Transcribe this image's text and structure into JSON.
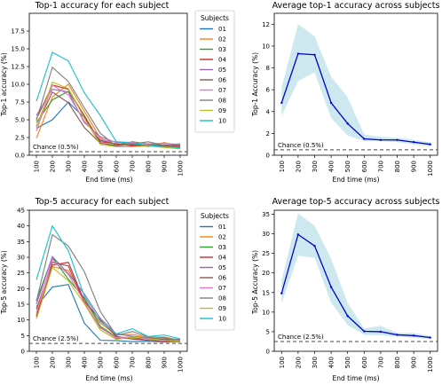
{
  "chart_data": [
    {
      "id": "top1_subjects",
      "type": "line",
      "title": "Top-1 accuracy for each subject",
      "xlabel": "End time (ms)",
      "ylabel": "Top-1 accuracy (%)",
      "x": [
        100,
        200,
        300,
        400,
        500,
        600,
        700,
        800,
        900,
        1000
      ],
      "xticks": [
        "100",
        "200",
        "300",
        "400",
        "500",
        "600",
        "700",
        "800",
        "900",
        "1000"
      ],
      "ylim": [
        0,
        20
      ],
      "yticks": [
        "0.0",
        "2.5",
        "5.0",
        "7.5",
        "10.0",
        "12.5",
        "15.0",
        "17.5"
      ],
      "yticks_values": [
        0,
        2.5,
        5,
        7.5,
        10,
        12.5,
        15,
        17.5
      ],
      "legend_title": "Subjects",
      "legend_position": "outside-right",
      "chance": {
        "label": "Chance (0.5%)",
        "value": 0.5
      },
      "series": [
        {
          "name": "01",
          "color": "#1f77b4",
          "values": [
            3.8,
            5.0,
            7.5,
            5.3,
            2.1,
            1.6,
            1.4,
            1.3,
            1.2,
            1.4
          ]
        },
        {
          "name": "02",
          "color": "#ff7f0e",
          "values": [
            2.4,
            8.2,
            10.0,
            6.2,
            2.4,
            1.5,
            1.7,
            1.2,
            1.8,
            1.2
          ]
        },
        {
          "name": "03",
          "color": "#2ca02c",
          "values": [
            4.6,
            7.8,
            9.0,
            5.6,
            1.7,
            1.4,
            1.9,
            1.6,
            1.3,
            1.0
          ]
        },
        {
          "name": "04",
          "color": "#d62728",
          "values": [
            5.1,
            9.9,
            9.3,
            5.5,
            1.9,
            1.6,
            1.3,
            1.5,
            1.2,
            1.3
          ]
        },
        {
          "name": "05",
          "color": "#9467bd",
          "values": [
            5.6,
            9.3,
            8.9,
            4.6,
            2.6,
            1.8,
            1.6,
            1.4,
            1.5,
            1.4
          ]
        },
        {
          "name": "06",
          "color": "#8c564b",
          "values": [
            4.1,
            8.9,
            7.4,
            3.9,
            1.7,
            1.3,
            1.5,
            1.3,
            1.4,
            1.1
          ]
        },
        {
          "name": "07",
          "color": "#e377c2",
          "values": [
            3.4,
            9.9,
            8.5,
            4.8,
            2.2,
            1.9,
            1.8,
            1.6,
            1.7,
            1.5
          ]
        },
        {
          "name": "08",
          "color": "#7f7f7f",
          "values": [
            4.9,
            12.4,
            10.4,
            6.7,
            3.1,
            1.3,
            1.6,
            1.9,
            1.4,
            1.6
          ]
        },
        {
          "name": "09",
          "color": "#bcbd22",
          "values": [
            3.9,
            10.3,
            9.4,
            5.2,
            1.5,
            1.2,
            1.2,
            1.3,
            1.1,
            0.9
          ]
        },
        {
          "name": "10",
          "color": "#17becf",
          "values": [
            7.6,
            14.5,
            13.3,
            8.8,
            5.6,
            1.9,
            1.7,
            1.4,
            1.2,
            1.1
          ]
        }
      ]
    },
    {
      "id": "top1_average",
      "type": "area",
      "title": "Average top-1 accuracy across subjects",
      "xlabel": "End time (ms)",
      "ylabel": "Top-1 Accuracy (%)",
      "x": [
        100,
        200,
        300,
        400,
        500,
        600,
        700,
        800,
        900,
        1000
      ],
      "xticks": [
        "100",
        "200",
        "300",
        "400",
        "500",
        "600",
        "700",
        "800",
        "900",
        "1000"
      ],
      "ylim": [
        0,
        13
      ],
      "yticks": [
        "0",
        "2",
        "4",
        "6",
        "8",
        "10",
        "12"
      ],
      "yticks_values": [
        0,
        2,
        4,
        6,
        8,
        10,
        12
      ],
      "chance": {
        "label": "Chance (0.5%)",
        "value": 0.5
      },
      "mean": [
        4.8,
        9.3,
        9.2,
        4.8,
        2.9,
        1.5,
        1.4,
        1.4,
        1.2,
        1.0
      ],
      "lower": [
        3.6,
        6.8,
        7.6,
        3.4,
        1.8,
        1.3,
        1.3,
        1.2,
        1.0,
        0.8
      ],
      "upper": [
        6.2,
        12.0,
        10.9,
        7.2,
        5.3,
        1.9,
        1.7,
        1.6,
        1.4,
        1.2
      ],
      "line_color": "#0000cc",
      "band_color": "#add8e6"
    },
    {
      "id": "top5_subjects",
      "type": "line",
      "title": "Top-5 accuracy for each subject",
      "xlabel": "End time (ms)",
      "ylabel": "Top-5 accuracy (%)",
      "x": [
        100,
        200,
        300,
        400,
        500,
        600,
        700,
        800,
        900,
        1000
      ],
      "xticks": [
        "100",
        "200",
        "300",
        "400",
        "500",
        "600",
        "700",
        "800",
        "900",
        "1000"
      ],
      "ylim": [
        0,
        45
      ],
      "yticks": [
        "0",
        "5",
        "10",
        "15",
        "20",
        "25",
        "30",
        "35",
        "40",
        "45"
      ],
      "yticks_values": [
        0,
        5,
        10,
        15,
        20,
        25,
        30,
        35,
        40,
        45
      ],
      "legend_title": "Subjects",
      "legend_position": "outside-right",
      "chance": {
        "label": "Chance (2.5%)",
        "value": 2.5
      },
      "series": [
        {
          "name": "01",
          "color": "#1f77b4",
          "values": [
            14.2,
            20.5,
            21.3,
            9.0,
            3.5,
            3.4,
            3.1,
            3.2,
            3.0,
            3.1
          ]
        },
        {
          "name": "02",
          "color": "#ff7f0e",
          "values": [
            11.5,
            27.0,
            25.8,
            16.3,
            9.0,
            5.2,
            5.4,
            4.4,
            4.6,
            3.5
          ]
        },
        {
          "name": "03",
          "color": "#2ca02c",
          "values": [
            16.2,
            30.0,
            23.0,
            17.0,
            8.0,
            4.6,
            4.4,
            4.2,
            3.8,
            3.3
          ]
        },
        {
          "name": "04",
          "color": "#d62728",
          "values": [
            11.0,
            27.5,
            28.4,
            16.0,
            10.0,
            4.8,
            3.9,
            3.5,
            3.3,
            3.0
          ]
        },
        {
          "name": "05",
          "color": "#9467bd",
          "values": [
            15.0,
            30.2,
            24.8,
            18.3,
            10.5,
            5.6,
            4.8,
            4.2,
            4.0,
            3.8
          ]
        },
        {
          "name": "06",
          "color": "#8c564b",
          "values": [
            13.4,
            28.4,
            27.2,
            15.4,
            7.6,
            4.2,
            4.0,
            3.9,
            3.6,
            3.2
          ]
        },
        {
          "name": "07",
          "color": "#e377c2",
          "values": [
            12.3,
            29.3,
            24.5,
            15.8,
            7.4,
            4.4,
            4.6,
            3.8,
            3.4,
            3.3
          ]
        },
        {
          "name": "08",
          "color": "#7f7f7f",
          "values": [
            16.0,
            37.2,
            33.6,
            25.4,
            12.7,
            5.1,
            6.3,
            4.6,
            4.3,
            3.6
          ]
        },
        {
          "name": "09",
          "color": "#bcbd22",
          "values": [
            10.3,
            26.8,
            22.5,
            15.2,
            6.8,
            3.8,
            4.5,
            4.0,
            3.5,
            3.1
          ]
        },
        {
          "name": "10",
          "color": "#17becf",
          "values": [
            22.8,
            40.0,
            32.1,
            17.6,
            9.6,
            5.5,
            7.2,
            4.7,
            5.2,
            4.0
          ]
        }
      ]
    },
    {
      "id": "top5_average",
      "type": "area",
      "title": "Average top-5 accuracy across subjects",
      "xlabel": "End time (ms)",
      "ylabel": "Top-5 Accuracy (%)",
      "x": [
        100,
        200,
        300,
        400,
        500,
        600,
        700,
        800,
        900,
        1000
      ],
      "xticks": [
        "100",
        "200",
        "300",
        "400",
        "500",
        "600",
        "700",
        "800",
        "900",
        "1000"
      ],
      "ylim": [
        0,
        36
      ],
      "yticks": [
        "0",
        "5",
        "10",
        "15",
        "20",
        "25",
        "30",
        "35"
      ],
      "yticks_values": [
        0,
        5,
        10,
        15,
        20,
        25,
        30,
        35
      ],
      "chance": {
        "label": "Chance (2.5%)",
        "value": 2.5
      },
      "mean": [
        14.8,
        29.8,
        26.9,
        16.4,
        9.0,
        5.1,
        5.0,
        4.2,
        4.0,
        3.5
      ],
      "lower": [
        12.3,
        24.4,
        23.9,
        12.4,
        6.7,
        4.2,
        4.1,
        3.7,
        3.5,
        3.1
      ],
      "upper": [
        18.1,
        35.2,
        32.0,
        23.6,
        12.3,
        5.8,
        6.5,
        4.7,
        4.7,
        4.0
      ],
      "line_color": "#0000cc",
      "band_color": "#add8e6"
    }
  ]
}
